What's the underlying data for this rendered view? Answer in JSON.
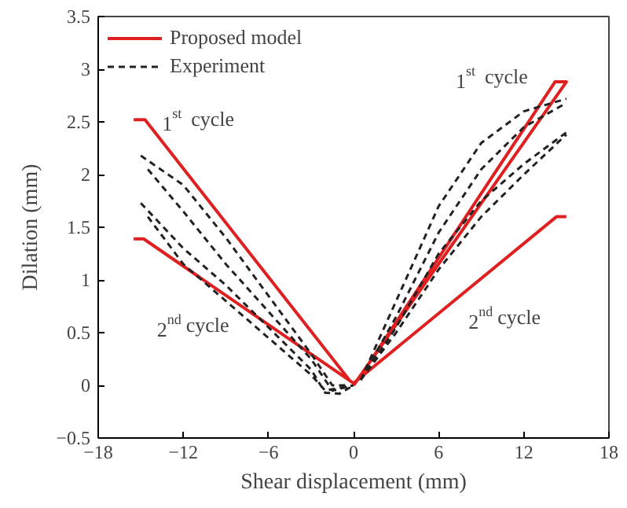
{
  "chart_data": {
    "type": "line",
    "xlabel": "Shear displacement (mm)",
    "ylabel": "Dilation (mm)",
    "xlim": [
      -18,
      18
    ],
    "ylim": [
      -0.5,
      3.5
    ],
    "xticks": [
      -18,
      -12,
      -6,
      0,
      6,
      12,
      18
    ],
    "yticks": [
      -0.5,
      0,
      0.5,
      1,
      1.5,
      2,
      2.5,
      3,
      3.5
    ],
    "grid": false,
    "legend": "top left",
    "marker": "none",
    "series": [
      {
        "name": "Proposed model",
        "color": "#e02020",
        "line_style": "solid",
        "x": [
          0,
          15,
          14.2,
          0.3,
          null,
          -15.5,
          -14.7,
          -0.3,
          null,
          15,
          14.3,
          0,
          null,
          -15.5,
          -14.8,
          0
        ],
        "values": [
          0,
          2.88,
          2.88,
          0.05,
          null,
          2.52,
          2.52,
          0.05,
          null,
          1.6,
          1.6,
          0.02,
          null,
          1.39,
          1.39,
          0.02
        ]
      },
      {
        "name": "Experiment",
        "color": "#222222",
        "line_style": "dashed",
        "x": [
          0.5,
          3,
          6,
          9,
          12,
          15,
          null,
          0.5,
          3,
          6,
          9,
          12,
          15,
          null,
          0.5,
          3,
          6,
          9,
          12,
          15,
          null,
          0.5,
          3,
          6,
          9,
          12,
          15,
          null,
          -15,
          -12,
          -9,
          -6,
          -3,
          -1.5,
          -0.5,
          null,
          -14.5,
          -12,
          -9,
          -6,
          -3,
          -1.5,
          0,
          null,
          -15,
          -12,
          -9,
          -6,
          -3,
          -2,
          -1,
          0,
          null,
          -14.5,
          -12,
          -9,
          -6,
          -3,
          -2,
          0
        ],
        "values": [
          0.05,
          0.8,
          1.7,
          2.3,
          2.6,
          2.72,
          null,
          0.05,
          0.65,
          1.45,
          2.05,
          2.45,
          2.68,
          null,
          0.05,
          0.55,
          1.25,
          1.75,
          2.1,
          2.4,
          null,
          0.05,
          0.5,
          1.1,
          1.6,
          2.0,
          2.38,
          null,
          2.18,
          1.9,
          1.4,
          0.85,
          0.3,
          0,
          0,
          null,
          2.05,
          1.65,
          1.15,
          0.7,
          0.25,
          -0.05,
          0,
          null,
          1.73,
          1.3,
          0.95,
          0.55,
          0.15,
          -0.07,
          -0.08,
          0,
          null,
          1.6,
          1.15,
          0.8,
          0.45,
          0.1,
          -0.05,
          0
        ]
      }
    ],
    "annotations": [
      "1$^{st}$ cycle",
      "1$^{st}$ cycle",
      "2$^{nd}$ cycle",
      "2$^{nd}$ cycle"
    ]
  }
}
